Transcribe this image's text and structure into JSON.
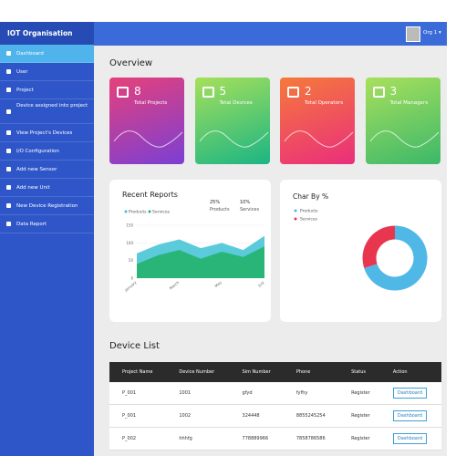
{
  "sidebar": {
    "brand": "IOT Organisation",
    "menu": [
      "Dashboard",
      "User",
      "Project",
      "Device assigned into project",
      "View Project's Devices",
      "I/O Configuration",
      "Add new Sensor",
      "Add new Unit",
      "New Device Registration",
      "Data Report"
    ]
  },
  "topbar": {
    "user": "Org 1"
  },
  "overview": {
    "title": "Overview",
    "cards": [
      {
        "value": 8,
        "label": "Total Projects"
      },
      {
        "value": 5,
        "label": "Total Devices"
      },
      {
        "value": 2,
        "label": "Total Operators"
      },
      {
        "value": 3,
        "label": "Total Managers"
      }
    ]
  },
  "recent_reports": {
    "title": "Recent Reports",
    "stats": [
      {
        "change": "25%",
        "label": "Products"
      },
      {
        "change": "10%",
        "label": "Services"
      }
    ],
    "chart": {
      "type": "area",
      "categories": [
        "January",
        null,
        "March",
        null,
        "May",
        null,
        "July"
      ],
      "series": [
        {
          "name": "Products",
          "color": "#3ec1d3",
          "values": [
            70,
            95,
            110,
            85,
            100,
            80,
            120
          ]
        },
        {
          "name": "Services",
          "color": "#23b26d",
          "values": [
            40,
            65,
            80,
            55,
            75,
            60,
            90
          ]
        }
      ],
      "ylim": [
        0,
        150
      ],
      "yticks": [
        0,
        50,
        100,
        150
      ]
    }
  },
  "pie_chart": {
    "type": "pie",
    "title": "Char By %",
    "categories": [
      "Products",
      "Services"
    ],
    "values": [
      70,
      30
    ],
    "colors": [
      "#4fb8e6",
      "#e8364f"
    ]
  },
  "device_list": {
    "title": "Device List",
    "columns": [
      "Project Name",
      "Device Number",
      "Sim Number",
      "Phone",
      "Status",
      "Action"
    ],
    "rows": [
      [
        "P_001",
        "1001",
        "gfyd",
        "fyfhy",
        "Register",
        "Dashboard"
      ],
      [
        "P_001",
        "1002",
        "324448",
        "8855245254",
        "Register",
        "Dashboard"
      ],
      [
        "P_002",
        "hhhfg",
        "778889966",
        "7858786586",
        "Register",
        "Dashboard"
      ]
    ]
  }
}
